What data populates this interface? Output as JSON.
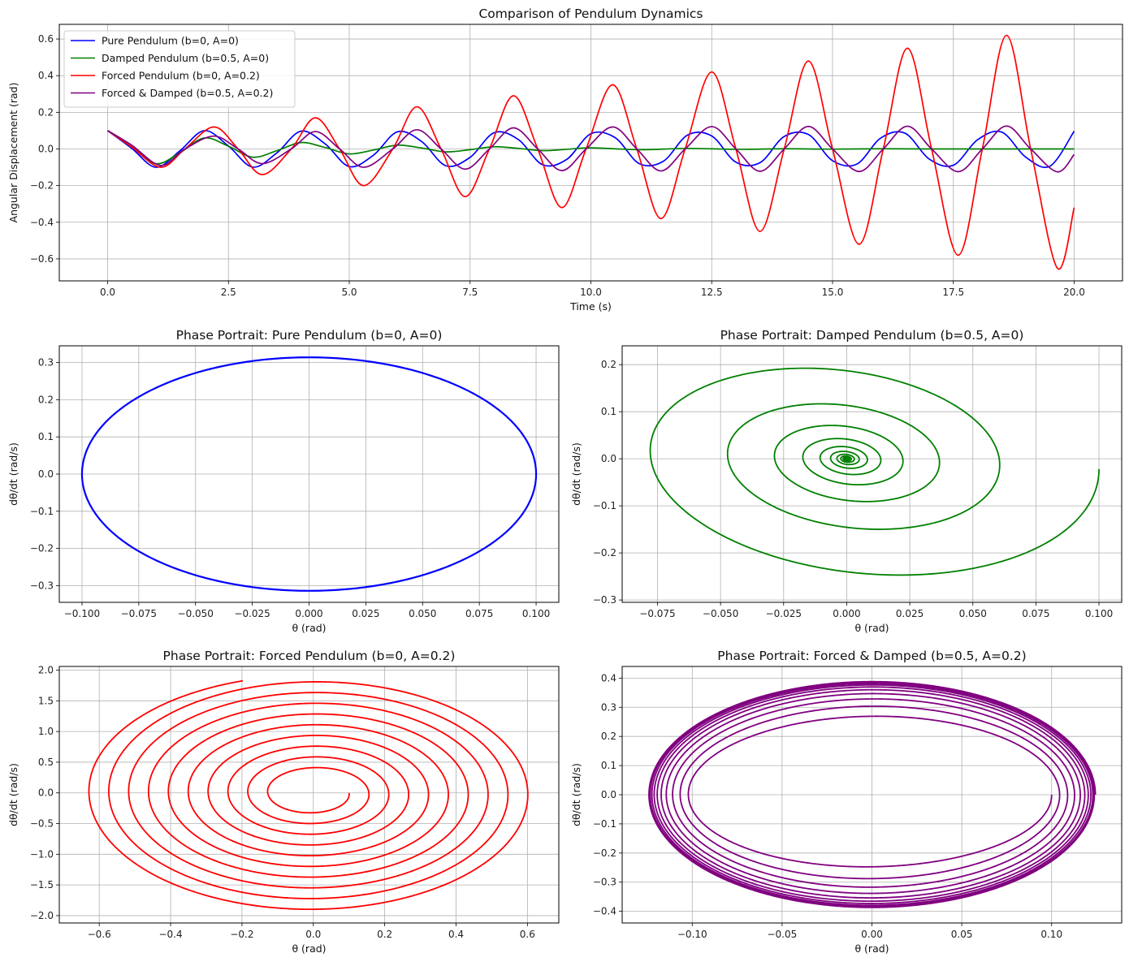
{
  "chart_data": [
    {
      "type": "line",
      "title": "Comparison of Pendulum Dynamics",
      "xlabel": "Time (s)",
      "ylabel": "Angular Displacement (rad)",
      "xlim": [
        -1.0,
        21.0
      ],
      "ylim": [
        -0.72,
        0.68
      ],
      "xticks": [
        0.0,
        2.5,
        5.0,
        7.5,
        10.0,
        12.5,
        15.0,
        17.5,
        20.0
      ],
      "xtick_labels": [
        "0.0",
        "2.5",
        "5.0",
        "7.5",
        "10.0",
        "12.5",
        "15.0",
        "17.5",
        "20.0"
      ],
      "yticks": [
        -0.6,
        -0.4,
        -0.2,
        0.0,
        0.2,
        0.4,
        0.6
      ],
      "ytick_labels": [
        "−0.6",
        "−0.4",
        "−0.2",
        "0.0",
        "0.2",
        "0.4",
        "0.6"
      ],
      "grid": true,
      "legend": "top-left",
      "series": [
        {
          "name": "Pure Pendulum (b=0, A=0)",
          "color": "#0000ff",
          "x": [
            0,
            0.5,
            1.0,
            1.5,
            2.0,
            2.5,
            3.0,
            3.5,
            4.0,
            4.5,
            5.0,
            5.5,
            6.0,
            6.5,
            7.0,
            7.5,
            8.0,
            8.5,
            9.0,
            9.5,
            10.0,
            10.5,
            11.0,
            11.5,
            12.0,
            12.5,
            13.0,
            13.5,
            14.0,
            14.5,
            15.0,
            15.5,
            16.0,
            16.5,
            17.0,
            17.5,
            18.0,
            18.5,
            19.0,
            19.5,
            20.0
          ],
          "y": [
            0.1,
            0.003,
            -0.1,
            -0.009,
            0.1,
            0.016,
            -0.099,
            -0.022,
            0.097,
            0.028,
            -0.096,
            -0.034,
            0.094,
            0.04,
            -0.092,
            -0.046,
            0.089,
            0.051,
            -0.086,
            -0.057,
            0.083,
            0.062,
            -0.08,
            -0.067,
            0.076,
            0.071,
            -0.072,
            -0.075,
            0.068,
            0.079,
            -0.064,
            -0.083,
            0.06,
            0.086,
            -0.055,
            -0.089,
            0.05,
            0.092,
            -0.045,
            -0.094,
            0.097
          ]
        },
        {
          "name": "Damped Pendulum (b=0.5, A=0)",
          "color": "#008000",
          "x": [
            0,
            0.5,
            1.0,
            1.5,
            2.0,
            2.5,
            3.0,
            3.5,
            4.0,
            4.5,
            5.0,
            5.5,
            6.0,
            6.5,
            7.0,
            7.5,
            8.0,
            8.5,
            9.0,
            9.5,
            10.0,
            11.0,
            12.0,
            13.0,
            14.0,
            15.0,
            16.0,
            17.0,
            18.0,
            19.0,
            20.0
          ],
          "y": [
            0.1,
            0.02,
            -0.08,
            -0.02,
            0.06,
            0.015,
            -0.045,
            -0.01,
            0.035,
            0.008,
            -0.027,
            -0.006,
            0.021,
            0.005,
            -0.016,
            -0.004,
            0.012,
            0.003,
            -0.009,
            -0.002,
            0.006,
            -0.004,
            0.003,
            -0.002,
            0.001,
            -0.001,
            0.001,
            0,
            0,
            0,
            0
          ]
        },
        {
          "name": "Forced Pendulum (b=0, A=0.2)",
          "color": "#ff0000",
          "x": [
            0,
            0.5,
            1.1,
            1.6,
            2.2,
            2.7,
            3.2,
            3.8,
            4.3,
            4.8,
            5.3,
            5.9,
            6.4,
            6.9,
            7.4,
            7.9,
            8.4,
            8.9,
            9.4,
            9.9,
            10.45,
            10.95,
            11.45,
            11.95,
            12.5,
            13.0,
            13.5,
            14.0,
            14.5,
            15.0,
            15.55,
            16.05,
            16.55,
            17.05,
            17.6,
            18.1,
            18.6,
            19.1,
            19.65,
            20.0
          ],
          "y": [
            0.1,
            0.01,
            -0.1,
            0.0,
            0.12,
            0.0,
            -0.14,
            0.0,
            0.17,
            0.0,
            -0.2,
            0.0,
            0.23,
            0.0,
            -0.26,
            0.0,
            0.29,
            0.0,
            -0.32,
            0.0,
            0.35,
            0.0,
            -0.38,
            0.0,
            0.42,
            0.0,
            -0.45,
            0.0,
            0.48,
            0.0,
            -0.52,
            0.0,
            0.55,
            0.0,
            -0.58,
            0.0,
            0.62,
            0.0,
            -0.65,
            -0.32
          ]
        },
        {
          "name": "Forced & Damped (b=0.5, A=0.2)",
          "color": "#800080",
          "x": [
            0,
            0.5,
            1.1,
            1.6,
            2.2,
            2.7,
            3.2,
            3.8,
            4.3,
            4.8,
            5.3,
            5.9,
            6.4,
            6.9,
            7.4,
            7.9,
            8.4,
            8.9,
            9.4,
            9.9,
            10.45,
            10.95,
            11.45,
            11.95,
            12.5,
            13.0,
            13.5,
            14.0,
            14.5,
            15.0,
            15.55,
            16.05,
            16.55,
            17.05,
            17.6,
            18.1,
            18.6,
            19.1,
            19.65,
            20.0
          ],
          "y": [
            0.1,
            0.02,
            -0.09,
            0.0,
            0.07,
            0.0,
            -0.08,
            0.0,
            0.095,
            0.0,
            -0.1,
            0.0,
            0.105,
            0.0,
            -0.11,
            0.0,
            0.115,
            0.0,
            -0.118,
            0.0,
            0.12,
            0.0,
            -0.12,
            0.0,
            0.122,
            0.0,
            -0.122,
            0.0,
            0.123,
            0.0,
            -0.123,
            0.0,
            0.124,
            0.0,
            -0.124,
            0.0,
            0.125,
            0.0,
            -0.125,
            -0.03
          ]
        }
      ]
    },
    {
      "type": "line",
      "title": "Phase Portrait: Pure Pendulum (b=0, A=0)",
      "xlabel": "θ (rad)",
      "ylabel": "dθ/dt (rad/s)",
      "xlim": [
        -0.11,
        0.11
      ],
      "ylim": [
        -0.345,
        0.345
      ],
      "xticks": [
        -0.1,
        -0.075,
        -0.05,
        -0.025,
        0.0,
        0.025,
        0.05,
        0.075,
        0.1
      ],
      "xtick_labels": [
        "−0.100",
        "−0.075",
        "−0.050",
        "−0.025",
        "0.000",
        "0.025",
        "0.050",
        "0.075",
        "0.100"
      ],
      "yticks": [
        -0.3,
        -0.2,
        -0.1,
        0.0,
        0.1,
        0.2,
        0.3
      ],
      "ytick_labels": [
        "−0.3",
        "−0.2",
        "−0.1",
        "0.0",
        "0.1",
        "0.2",
        "0.3"
      ],
      "grid": true,
      "series": [
        {
          "color": "#0000ff",
          "shape": "ellipse",
          "center": [
            0,
            0
          ],
          "theta_amplitude": 0.1,
          "omega_amplitude": 0.314
        }
      ]
    },
    {
      "type": "line",
      "title": "Phase Portrait: Damped Pendulum (b=0.5, A=0)",
      "xlabel": "θ (rad)",
      "ylabel": "dθ/dt (rad/s)",
      "xlim": [
        -0.089,
        0.109
      ],
      "ylim": [
        -0.305,
        0.24
      ],
      "xticks": [
        -0.075,
        -0.05,
        -0.025,
        0.0,
        0.025,
        0.05,
        0.075,
        0.1
      ],
      "xtick_labels": [
        "−0.075",
        "−0.050",
        "−0.025",
        "0.000",
        "0.025",
        "0.050",
        "0.075",
        "0.100"
      ],
      "yticks": [
        -0.3,
        -0.2,
        -0.1,
        0.0,
        0.1,
        0.2
      ],
      "ytick_labels": [
        "−0.3",
        "−0.2",
        "−0.1",
        "0.0",
        "0.1",
        "0.2"
      ],
      "grid": true,
      "series": [
        {
          "color": "#008000",
          "shape": "damped-spiral",
          "theta_start": 0.1,
          "omega_max": 0.276,
          "turns": 12
        }
      ]
    },
    {
      "type": "line",
      "title": "Phase Portrait: Forced Pendulum (b=0, A=0.2)",
      "xlabel": "θ (rad)",
      "ylabel": "dθ/dt (rad/s)",
      "xlim": [
        -0.712,
        0.688
      ],
      "ylim": [
        -2.12,
        2.06
      ],
      "xticks": [
        -0.6,
        -0.4,
        -0.2,
        0.0,
        0.2,
        0.4,
        0.6
      ],
      "xtick_labels": [
        "−0.6",
        "−0.4",
        "−0.2",
        "0.0",
        "0.2",
        "0.4",
        "0.6"
      ],
      "yticks": [
        -2.0,
        -1.5,
        -1.0,
        -0.5,
        0.0,
        0.5,
        1.0,
        1.5,
        2.0
      ],
      "ytick_labels": [
        "−2.0",
        "−1.5",
        "−1.0",
        "−0.5",
        "0.0",
        "0.5",
        "1.0",
        "1.5",
        "2.0"
      ],
      "grid": true,
      "series": [
        {
          "color": "#ff0000",
          "shape": "growing-spiral",
          "theta_start": 0.1,
          "theta_end": -0.325,
          "omega_end": 1.76,
          "turns": 9.7
        }
      ]
    },
    {
      "type": "line",
      "title": "Phase Portrait: Forced & Damped (b=0.5, A=0.2)",
      "xlabel": "θ (rad)",
      "ylabel": "dθ/dt (rad/s)",
      "xlim": [
        -0.139,
        0.139
      ],
      "ylim": [
        -0.44,
        0.44
      ],
      "xticks": [
        -0.1,
        -0.05,
        0.0,
        0.05,
        0.1
      ],
      "xtick_labels": [
        "−0.10",
        "−0.05",
        "0.00",
        "0.05",
        "0.10"
      ],
      "yticks": [
        -0.4,
        -0.3,
        -0.2,
        -0.1,
        0.0,
        0.1,
        0.2,
        0.3,
        0.4
      ],
      "ytick_labels": [
        "−0.4",
        "−0.3",
        "−0.2",
        "−0.1",
        "0.0",
        "0.1",
        "0.2",
        "0.3",
        "0.4"
      ],
      "grid": true,
      "series": [
        {
          "color": "#800080",
          "shape": "limit-cycle",
          "theta_start": 0.1,
          "limit_theta": 0.126,
          "limit_omega": 0.395
        }
      ]
    }
  ]
}
